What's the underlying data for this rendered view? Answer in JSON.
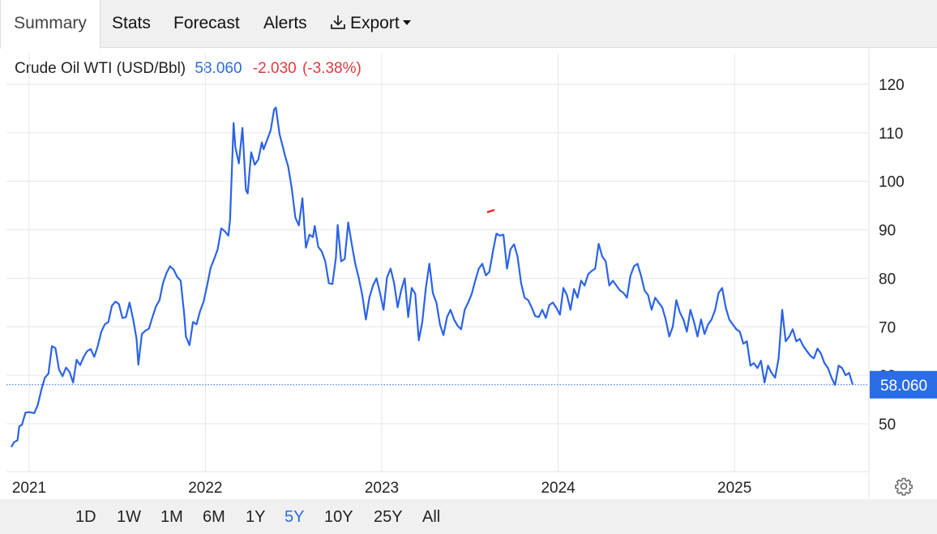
{
  "tabs": [
    {
      "label": "Summary",
      "active": true
    },
    {
      "label": "Stats",
      "active": false
    },
    {
      "label": "Forecast",
      "active": false
    },
    {
      "label": "Alerts",
      "active": false
    },
    {
      "label": "Export",
      "active": false
    }
  ],
  "header": {
    "instrument": "Crude Oil WTI (USD/Bbl)",
    "price": "58.060",
    "change": "-2.030",
    "change_pct": "(-3.38%)"
  },
  "ranges": [
    {
      "label": "1D",
      "active": false
    },
    {
      "label": "1W",
      "active": false
    },
    {
      "label": "1M",
      "active": false
    },
    {
      "label": "6M",
      "active": false
    },
    {
      "label": "1Y",
      "active": false
    },
    {
      "label": "5Y",
      "active": true
    },
    {
      "label": "10Y",
      "active": false
    },
    {
      "label": "25Y",
      "active": false
    },
    {
      "label": "All",
      "active": false
    }
  ],
  "colors": {
    "line": "#2b63e8",
    "up": "#2a6ae6",
    "down": "#e0393e",
    "grid": "#e6e6e6",
    "price_tag": "#2b6de6"
  },
  "chart_data": {
    "type": "line",
    "ylim": [
      40,
      125
    ],
    "y_ticks": [
      50,
      60,
      70,
      80,
      90,
      100,
      110,
      120
    ],
    "x_ticks": [
      {
        "label": "2021",
        "x": 2021.0
      },
      {
        "label": "2022",
        "x": 2022.0
      },
      {
        "label": "2023",
        "x": 2023.0
      },
      {
        "label": "2024",
        "x": 2024.0
      },
      {
        "label": "2025",
        "x": 2025.0
      }
    ],
    "xlim": [
      2020.9,
      2025.92
    ],
    "last_value": 58.06,
    "last_value_label": "58.060",
    "grid": true,
    "series": [
      {
        "points": [
          [
            2020.9,
            45.2
          ],
          [
            2020.915,
            46.2
          ],
          [
            2020.935,
            46.6
          ],
          [
            2020.945,
            49.5
          ],
          [
            2020.96,
            49.8
          ],
          [
            2020.98,
            52.3
          ],
          [
            2021.0,
            52.4
          ],
          [
            2021.03,
            52.2
          ],
          [
            2021.05,
            53.9
          ],
          [
            2021.07,
            57.0
          ],
          [
            2021.09,
            59.5
          ],
          [
            2021.11,
            60.3
          ],
          [
            2021.13,
            66.0
          ],
          [
            2021.15,
            65.6
          ],
          [
            2021.17,
            61.2
          ],
          [
            2021.19,
            59.8
          ],
          [
            2021.21,
            61.6
          ],
          [
            2021.23,
            60.7
          ],
          [
            2021.25,
            58.5
          ],
          [
            2021.27,
            63.2
          ],
          [
            2021.29,
            62.1
          ],
          [
            2021.31,
            63.8
          ],
          [
            2021.33,
            65.0
          ],
          [
            2021.35,
            65.4
          ],
          [
            2021.37,
            63.8
          ],
          [
            2021.39,
            66.0
          ],
          [
            2021.41,
            69.0
          ],
          [
            2021.43,
            70.5
          ],
          [
            2021.45,
            71.0
          ],
          [
            2021.47,
            74.3
          ],
          [
            2021.49,
            75.2
          ],
          [
            2021.51,
            74.7
          ],
          [
            2021.53,
            71.8
          ],
          [
            2021.55,
            72.0
          ],
          [
            2021.57,
            75.0
          ],
          [
            2021.59,
            71.6
          ],
          [
            2021.61,
            67.5
          ],
          [
            2021.62,
            62.2
          ],
          [
            2021.64,
            68.5
          ],
          [
            2021.66,
            69.2
          ],
          [
            2021.68,
            69.6
          ],
          [
            2021.7,
            72.0
          ],
          [
            2021.72,
            74.2
          ],
          [
            2021.74,
            75.5
          ],
          [
            2021.76,
            79.0
          ],
          [
            2021.78,
            81.1
          ],
          [
            2021.8,
            82.5
          ],
          [
            2021.82,
            81.8
          ],
          [
            2021.84,
            80.3
          ],
          [
            2021.86,
            79.5
          ],
          [
            2021.88,
            72.5
          ],
          [
            2021.89,
            68.0
          ],
          [
            2021.91,
            66.2
          ],
          [
            2021.93,
            71.0
          ],
          [
            2021.95,
            70.5
          ],
          [
            2021.97,
            73.2
          ],
          [
            2021.99,
            75.2
          ],
          [
            2022.01,
            78.5
          ],
          [
            2022.03,
            82.2
          ],
          [
            2022.05,
            84.0
          ],
          [
            2022.07,
            86.0
          ],
          [
            2022.09,
            90.3
          ],
          [
            2022.11,
            89.7
          ],
          [
            2022.13,
            88.8
          ],
          [
            2022.14,
            92.0
          ],
          [
            2022.16,
            112.0
          ],
          [
            2022.17,
            107.0
          ],
          [
            2022.19,
            103.7
          ],
          [
            2022.21,
            111.0
          ],
          [
            2022.23,
            98.2
          ],
          [
            2022.24,
            97.5
          ],
          [
            2022.26,
            106.0
          ],
          [
            2022.28,
            103.4
          ],
          [
            2022.3,
            104.5
          ],
          [
            2022.32,
            108.0
          ],
          [
            2022.33,
            106.6
          ],
          [
            2022.35,
            108.5
          ],
          [
            2022.37,
            110.5
          ],
          [
            2022.39,
            114.8
          ],
          [
            2022.4,
            115.2
          ],
          [
            2022.42,
            109.8
          ],
          [
            2022.44,
            107.0
          ],
          [
            2022.45,
            105.5
          ],
          [
            2022.47,
            103.0
          ],
          [
            2022.49,
            98.5
          ],
          [
            2022.51,
            92.5
          ],
          [
            2022.53,
            90.9
          ],
          [
            2022.55,
            96.5
          ],
          [
            2022.57,
            86.3
          ],
          [
            2022.59,
            89.0
          ],
          [
            2022.61,
            88.5
          ],
          [
            2022.62,
            90.8
          ],
          [
            2022.64,
            86.5
          ],
          [
            2022.66,
            85.5
          ],
          [
            2022.68,
            83.5
          ],
          [
            2022.7,
            79.0
          ],
          [
            2022.72,
            78.8
          ],
          [
            2022.74,
            84.2
          ],
          [
            2022.75,
            91.0
          ],
          [
            2022.77,
            83.5
          ],
          [
            2022.79,
            84.0
          ],
          [
            2022.81,
            91.5
          ],
          [
            2022.83,
            87.0
          ],
          [
            2022.85,
            83.0
          ],
          [
            2022.87,
            80.0
          ],
          [
            2022.89,
            76.5
          ],
          [
            2022.91,
            71.5
          ],
          [
            2022.93,
            76.0
          ],
          [
            2022.95,
            78.5
          ],
          [
            2022.97,
            80.0
          ],
          [
            2022.99,
            77.0
          ],
          [
            2023.01,
            73.5
          ],
          [
            2023.03,
            80.2
          ],
          [
            2023.05,
            82.0
          ],
          [
            2023.07,
            79.0
          ],
          [
            2023.09,
            74.0
          ],
          [
            2023.11,
            77.5
          ],
          [
            2023.13,
            80.0
          ],
          [
            2023.15,
            72.0
          ],
          [
            2023.17,
            78.0
          ],
          [
            2023.19,
            76.8
          ],
          [
            2023.21,
            67.2
          ],
          [
            2023.23,
            71.0
          ],
          [
            2023.25,
            78.0
          ],
          [
            2023.27,
            83.0
          ],
          [
            2023.29,
            76.9
          ],
          [
            2023.31,
            75.0
          ],
          [
            2023.33,
            70.5
          ],
          [
            2023.35,
            68.3
          ],
          [
            2023.37,
            72.0
          ],
          [
            2023.39,
            73.5
          ],
          [
            2023.41,
            71.5
          ],
          [
            2023.43,
            70.2
          ],
          [
            2023.45,
            69.5
          ],
          [
            2023.47,
            73.5
          ],
          [
            2023.49,
            75.0
          ],
          [
            2023.51,
            76.8
          ],
          [
            2023.53,
            79.5
          ],
          [
            2023.55,
            82.0
          ],
          [
            2023.57,
            83.0
          ],
          [
            2023.59,
            80.6
          ],
          [
            2023.61,
            81.3
          ],
          [
            2023.63,
            85.5
          ],
          [
            2023.65,
            89.2
          ],
          [
            2023.67,
            88.8
          ],
          [
            2023.69,
            89.0
          ],
          [
            2023.71,
            82.0
          ],
          [
            2023.73,
            86.0
          ],
          [
            2023.75,
            87.0
          ],
          [
            2023.77,
            84.5
          ],
          [
            2023.79,
            79.0
          ],
          [
            2023.81,
            76.0
          ],
          [
            2023.83,
            75.5
          ],
          [
            2023.85,
            74.0
          ],
          [
            2023.87,
            72.2
          ],
          [
            2023.89,
            72.0
          ],
          [
            2023.91,
            73.5
          ],
          [
            2023.93,
            71.8
          ],
          [
            2023.95,
            74.5
          ],
          [
            2023.97,
            75.0
          ],
          [
            2023.99,
            73.9
          ],
          [
            2024.01,
            72.5
          ],
          [
            2024.03,
            78.0
          ],
          [
            2024.05,
            76.5
          ],
          [
            2024.07,
            73.5
          ],
          [
            2024.09,
            77.8
          ],
          [
            2024.11,
            76.0
          ],
          [
            2024.13,
            79.5
          ],
          [
            2024.15,
            78.5
          ],
          [
            2024.17,
            80.8
          ],
          [
            2024.19,
            81.5
          ],
          [
            2024.21,
            82.0
          ],
          [
            2024.23,
            87.1
          ],
          [
            2024.25,
            84.5
          ],
          [
            2024.27,
            83.5
          ],
          [
            2024.29,
            78.5
          ],
          [
            2024.31,
            79.5
          ],
          [
            2024.33,
            78.5
          ],
          [
            2024.35,
            77.5
          ],
          [
            2024.37,
            77.0
          ],
          [
            2024.39,
            76.0
          ],
          [
            2024.41,
            80.5
          ],
          [
            2024.43,
            82.5
          ],
          [
            2024.45,
            83.0
          ],
          [
            2024.47,
            80.5
          ],
          [
            2024.49,
            77.5
          ],
          [
            2024.51,
            76.5
          ],
          [
            2024.53,
            73.5
          ],
          [
            2024.55,
            76.0
          ],
          [
            2024.57,
            75.0
          ],
          [
            2024.59,
            74.0
          ],
          [
            2024.61,
            71.5
          ],
          [
            2024.63,
            68.0
          ],
          [
            2024.65,
            70.0
          ],
          [
            2024.67,
            75.5
          ],
          [
            2024.69,
            73.0
          ],
          [
            2024.71,
            71.5
          ],
          [
            2024.73,
            69.0
          ],
          [
            2024.75,
            73.5
          ],
          [
            2024.77,
            71.0
          ],
          [
            2024.79,
            68.0
          ],
          [
            2024.81,
            71.5
          ],
          [
            2024.83,
            68.5
          ],
          [
            2024.85,
            70.5
          ],
          [
            2024.87,
            71.5
          ],
          [
            2024.89,
            73.5
          ],
          [
            2024.91,
            77.0
          ],
          [
            2024.93,
            78.0
          ],
          [
            2024.95,
            74.0
          ],
          [
            2024.97,
            71.5
          ],
          [
            2024.99,
            70.5
          ],
          [
            2025.01,
            69.5
          ],
          [
            2025.03,
            69.0
          ],
          [
            2025.05,
            66.5
          ],
          [
            2025.07,
            67.0
          ],
          [
            2025.09,
            62.0
          ],
          [
            2025.11,
            62.5
          ],
          [
            2025.13,
            61.5
          ],
          [
            2025.15,
            63.0
          ],
          [
            2025.17,
            58.5
          ],
          [
            2025.19,
            62.0
          ],
          [
            2025.21,
            60.5
          ],
          [
            2025.23,
            59.5
          ],
          [
            2025.25,
            63.5
          ],
          [
            2025.27,
            73.5
          ],
          [
            2025.29,
            67.0
          ],
          [
            2025.31,
            68.0
          ],
          [
            2025.33,
            69.5
          ],
          [
            2025.35,
            67.0
          ],
          [
            2025.37,
            67.5
          ],
          [
            2025.39,
            66.0
          ],
          [
            2025.41,
            65.0
          ],
          [
            2025.43,
            64.0
          ],
          [
            2025.45,
            63.5
          ],
          [
            2025.47,
            65.5
          ],
          [
            2025.49,
            64.5
          ],
          [
            2025.51,
            62.5
          ],
          [
            2025.53,
            61.5
          ],
          [
            2025.55,
            59.5
          ],
          [
            2025.57,
            58.0
          ],
          [
            2025.59,
            62.0
          ],
          [
            2025.61,
            61.5
          ],
          [
            2025.63,
            60.0
          ],
          [
            2025.65,
            60.5
          ],
          [
            2025.67,
            58.06
          ]
        ]
      }
    ]
  }
}
